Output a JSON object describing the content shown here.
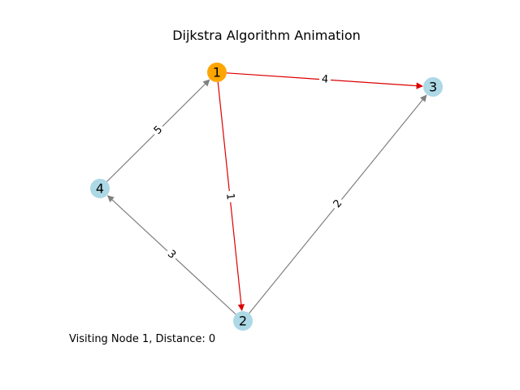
{
  "title": "Dijkstra Algorithm Animation",
  "status_text": "Visiting Node 1, Distance: 0",
  "colors": {
    "visited_node": "#FFA500",
    "default_node": "#ADD8E6",
    "highlight_edge": "#DD0000",
    "default_edge": "#808080"
  },
  "nodes": [
    {
      "id": "1",
      "label": "1",
      "state": "visited"
    },
    {
      "id": "2",
      "label": "2",
      "state": "default"
    },
    {
      "id": "3",
      "label": "3",
      "state": "default"
    },
    {
      "id": "4",
      "label": "4",
      "state": "default"
    }
  ],
  "edges": [
    {
      "from": "1",
      "to": "3",
      "weight": "4",
      "highlight": true
    },
    {
      "from": "1",
      "to": "2",
      "weight": "1",
      "highlight": true
    },
    {
      "from": "4",
      "to": "1",
      "weight": "5",
      "highlight": false
    },
    {
      "from": "2",
      "to": "4",
      "weight": "3",
      "highlight": false
    },
    {
      "from": "2",
      "to": "3",
      "weight": "2",
      "highlight": false
    }
  ]
}
